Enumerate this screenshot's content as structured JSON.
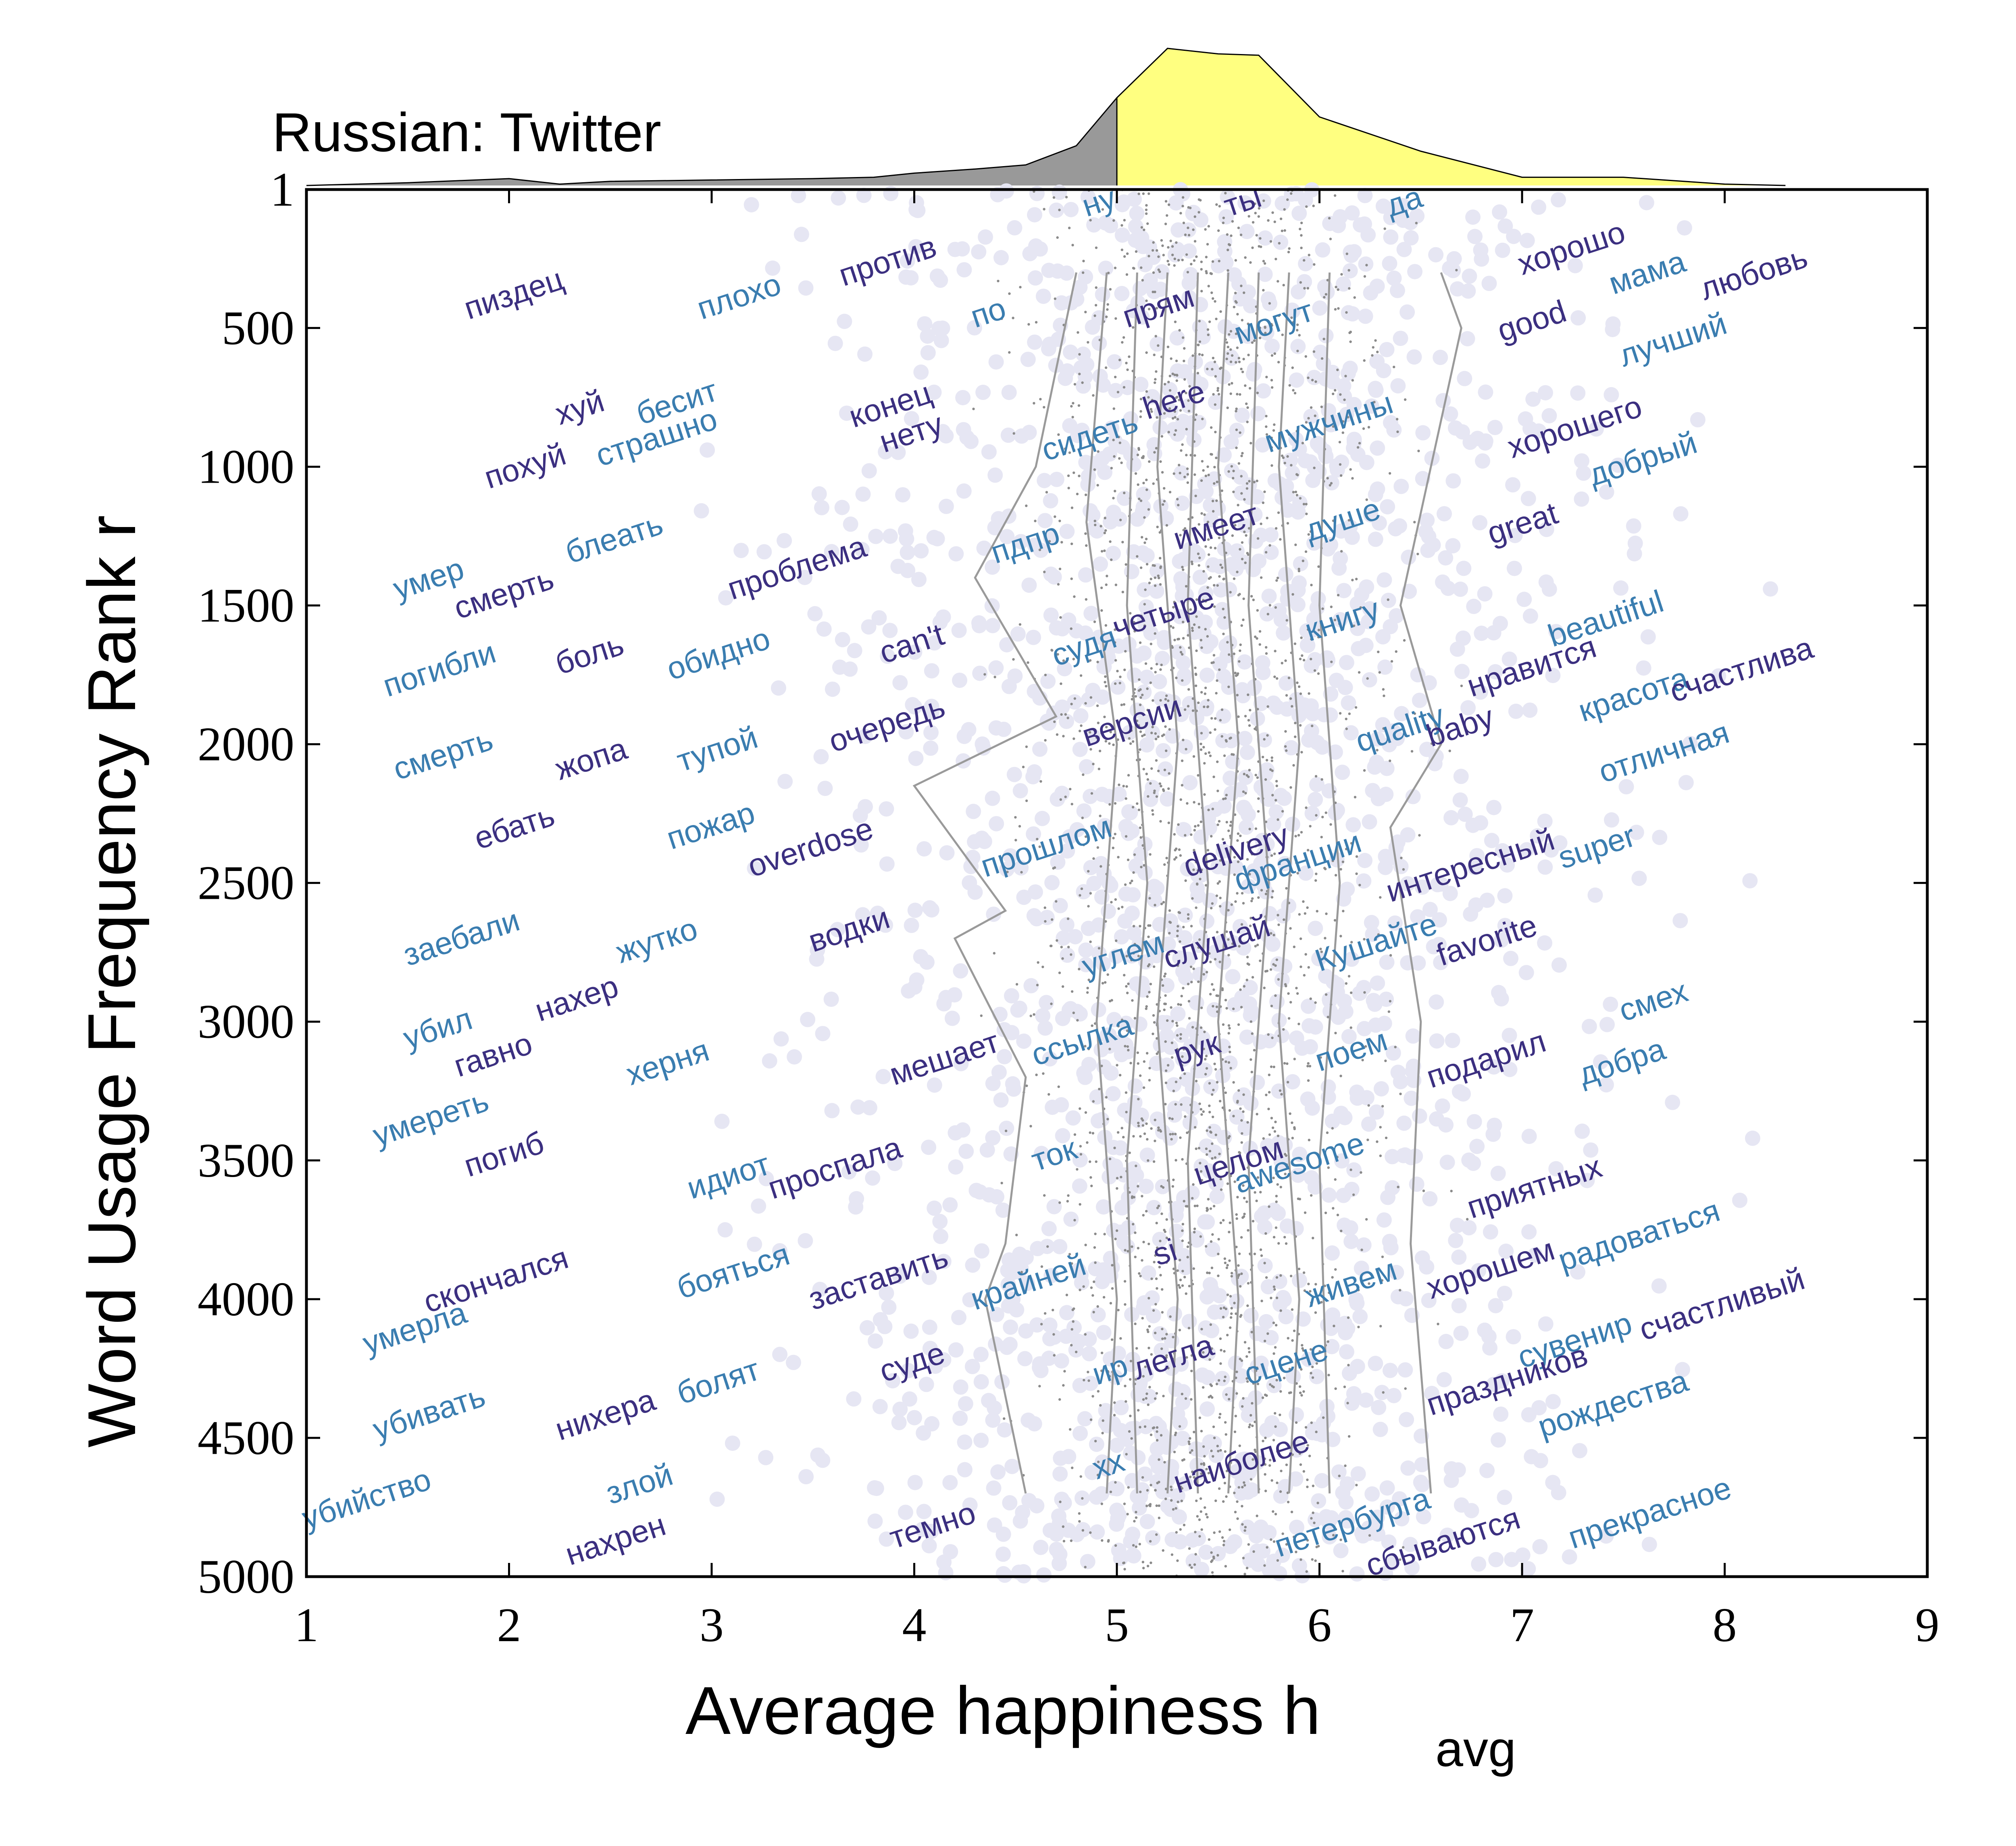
{
  "chart_data": {
    "type": "scatter",
    "title": "Russian: Twitter",
    "xlabel": "Average happiness h",
    "xlabel_sub": "avg",
    "ylabel": "Word Usage Frequency Rank r",
    "xlim": [
      1,
      9
    ],
    "ylim": [
      1,
      5000
    ],
    "x_ticks": [
      1,
      2,
      3,
      4,
      5,
      6,
      7,
      8,
      9
    ],
    "y_ticks": [
      1,
      500,
      1000,
      1500,
      2000,
      2500,
      3000,
      3500,
      4000,
      4500,
      5000
    ],
    "y_inverted": true,
    "grid": false,
    "colors": {
      "word_dark": "#3b2f80",
      "word_light": "#3a7db0",
      "points": "#e6e6f3",
      "dots": "#8a8a8a",
      "contours": "#9a9a9a",
      "hist_negative": "#999999",
      "hist_positive": "#ffff80",
      "axis": "#000000"
    },
    "histogram": {
      "x": [
        1.0,
        1.5,
        2.0,
        2.25,
        2.5,
        3.0,
        3.5,
        3.8,
        4.0,
        4.3,
        4.55,
        4.8,
        5.0,
        5.25,
        5.5,
        5.7,
        6.0,
        6.5,
        7.0,
        7.5,
        8.0,
        8.3
      ],
      "density": [
        0.0,
        0.02,
        0.05,
        0.01,
        0.03,
        0.04,
        0.05,
        0.06,
        0.09,
        0.12,
        0.15,
        0.29,
        0.64,
        1.0,
        0.96,
        0.95,
        0.5,
        0.25,
        0.06,
        0.06,
        0.01,
        0.0
      ],
      "split": 5.0
    },
    "contour_lines": [
      [
        [
          4.8,
          300
        ],
        [
          4.6,
          1000
        ],
        [
          4.3,
          1400
        ],
        [
          4.7,
          1900
        ],
        [
          4.0,
          2150
        ],
        [
          4.45,
          2600
        ],
        [
          4.2,
          2700
        ],
        [
          4.55,
          3200
        ],
        [
          4.45,
          3800
        ],
        [
          4.35,
          4000
        ],
        [
          4.55,
          4700
        ]
      ],
      [
        [
          4.95,
          300
        ],
        [
          4.85,
          1200
        ],
        [
          5.0,
          2000
        ],
        [
          4.9,
          3000
        ],
        [
          5.0,
          4000
        ],
        [
          4.95,
          4700
        ]
      ],
      [
        [
          5.1,
          300
        ],
        [
          5.05,
          1500
        ],
        [
          5.15,
          2500
        ],
        [
          5.05,
          3500
        ],
        [
          5.1,
          4700
        ]
      ],
      [
        [
          5.25,
          300
        ],
        [
          5.2,
          1000
        ],
        [
          5.3,
          2000
        ],
        [
          5.2,
          3000
        ],
        [
          5.3,
          4000
        ],
        [
          5.25,
          4700
        ]
      ],
      [
        [
          5.4,
          300
        ],
        [
          5.35,
          1500
        ],
        [
          5.45,
          2500
        ],
        [
          5.35,
          3500
        ],
        [
          5.4,
          4700
        ]
      ],
      [
        [
          5.55,
          300
        ],
        [
          5.5,
          1000
        ],
        [
          5.6,
          2000
        ],
        [
          5.5,
          3000
        ],
        [
          5.6,
          4000
        ],
        [
          5.55,
          4700
        ]
      ],
      [
        [
          5.7,
          300
        ],
        [
          5.65,
          1500
        ],
        [
          5.75,
          2500
        ],
        [
          5.65,
          3500
        ],
        [
          5.7,
          4700
        ]
      ],
      [
        [
          5.85,
          300
        ],
        [
          5.8,
          1000
        ],
        [
          5.9,
          2000
        ],
        [
          5.8,
          3000
        ],
        [
          5.9,
          4000
        ],
        [
          5.85,
          4700
        ]
      ],
      [
        [
          6.05,
          300
        ],
        [
          6.0,
          1500
        ],
        [
          6.1,
          2500
        ],
        [
          6.0,
          3500
        ],
        [
          6.05,
          4700
        ]
      ],
      [
        [
          6.6,
          300
        ],
        [
          6.7,
          500
        ],
        [
          6.55,
          1000
        ],
        [
          6.4,
          1500
        ],
        [
          6.6,
          2000
        ],
        [
          6.35,
          2300
        ],
        [
          6.5,
          3000
        ],
        [
          6.45,
          3800
        ],
        [
          6.55,
          4700
        ]
      ]
    ],
    "words": [
      {
        "text": "пиздец",
        "h": 1.8,
        "r": 470,
        "tone": "dark"
      },
      {
        "text": "плохо",
        "h": 2.95,
        "r": 470,
        "tone": "light"
      },
      {
        "text": "против",
        "h": 3.65,
        "r": 350,
        "tone": "dark"
      },
      {
        "text": "ну",
        "h": 4.85,
        "r": 100,
        "tone": "light"
      },
      {
        "text": "ты",
        "h": 5.55,
        "r": 100,
        "tone": "dark"
      },
      {
        "text": "да",
        "h": 6.35,
        "r": 100,
        "tone": "light"
      },
      {
        "text": "хорошо",
        "h": 7.0,
        "r": 310,
        "tone": "dark"
      },
      {
        "text": "мама",
        "h": 7.45,
        "r": 380,
        "tone": "light"
      },
      {
        "text": "любовь",
        "h": 7.9,
        "r": 400,
        "tone": "dark"
      },
      {
        "text": "хуй",
        "h": 2.25,
        "r": 850,
        "tone": "dark"
      },
      {
        "text": "бесит",
        "h": 2.65,
        "r": 850,
        "tone": "light"
      },
      {
        "text": "по",
        "h": 4.3,
        "r": 500,
        "tone": "light"
      },
      {
        "text": "прям",
        "h": 5.05,
        "r": 500,
        "tone": "dark"
      },
      {
        "text": "могут",
        "h": 5.6,
        "r": 560,
        "tone": "light"
      },
      {
        "text": "good",
        "h": 6.9,
        "r": 550,
        "tone": "dark"
      },
      {
        "text": "лучший",
        "h": 7.5,
        "r": 640,
        "tone": "light"
      },
      {
        "text": "похуй",
        "h": 1.9,
        "r": 1080,
        "tone": "dark"
      },
      {
        "text": "страшно",
        "h": 2.45,
        "r": 1000,
        "tone": "light"
      },
      {
        "text": "конец",
        "h": 3.7,
        "r": 860,
        "tone": "dark"
      },
      {
        "text": "нету",
        "h": 3.85,
        "r": 950,
        "tone": "dark"
      },
      {
        "text": "сидеть",
        "h": 4.65,
        "r": 980,
        "tone": "light"
      },
      {
        "text": "here",
        "h": 5.15,
        "r": 830,
        "tone": "dark"
      },
      {
        "text": "мужчины",
        "h": 5.75,
        "r": 950,
        "tone": "light"
      },
      {
        "text": "хорошего",
        "h": 6.95,
        "r": 970,
        "tone": "dark"
      },
      {
        "text": "добрый",
        "h": 7.35,
        "r": 1070,
        "tone": "light"
      },
      {
        "text": "умер",
        "h": 1.45,
        "r": 1480,
        "tone": "light"
      },
      {
        "text": "смерть",
        "h": 1.75,
        "r": 1550,
        "tone": "dark"
      },
      {
        "text": "блеать",
        "h": 2.3,
        "r": 1350,
        "tone": "light"
      },
      {
        "text": "проблема",
        "h": 3.1,
        "r": 1480,
        "tone": "dark"
      },
      {
        "text": "пдпр",
        "h": 4.4,
        "r": 1350,
        "tone": "light"
      },
      {
        "text": "имеет",
        "h": 5.3,
        "r": 1300,
        "tone": "dark"
      },
      {
        "text": "душе",
        "h": 5.95,
        "r": 1270,
        "tone": "light"
      },
      {
        "text": "great",
        "h": 6.85,
        "r": 1280,
        "tone": "dark"
      },
      {
        "text": "beautiful",
        "h": 7.15,
        "r": 1650,
        "tone": "light"
      },
      {
        "text": "погибли",
        "h": 1.4,
        "r": 1830,
        "tone": "light"
      },
      {
        "text": "боль",
        "h": 2.25,
        "r": 1750,
        "tone": "dark"
      },
      {
        "text": "обидно",
        "h": 2.8,
        "r": 1770,
        "tone": "light"
      },
      {
        "text": "can't",
        "h": 3.85,
        "r": 1710,
        "tone": "dark"
      },
      {
        "text": "судя",
        "h": 4.7,
        "r": 1720,
        "tone": "light"
      },
      {
        "text": "четыре",
        "h": 5.0,
        "r": 1620,
        "tone": "dark"
      },
      {
        "text": "книгу",
        "h": 5.95,
        "r": 1630,
        "tone": "light"
      },
      {
        "text": "нравится",
        "h": 6.75,
        "r": 1830,
        "tone": "dark"
      },
      {
        "text": "красота",
        "h": 7.3,
        "r": 1920,
        "tone": "light"
      },
      {
        "text": "счастлива",
        "h": 7.75,
        "r": 1850,
        "tone": "dark"
      },
      {
        "text": "смерть",
        "h": 1.45,
        "r": 2130,
        "tone": "light"
      },
      {
        "text": "жопа",
        "h": 2.25,
        "r": 2130,
        "tone": "dark"
      },
      {
        "text": "тупой",
        "h": 2.85,
        "r": 2100,
        "tone": "light"
      },
      {
        "text": "очередь",
        "h": 3.6,
        "r": 2030,
        "tone": "dark"
      },
      {
        "text": "версии",
        "h": 4.85,
        "r": 2010,
        "tone": "dark"
      },
      {
        "text": "quality",
        "h": 6.2,
        "r": 2030,
        "tone": "light"
      },
      {
        "text": "baby",
        "h": 6.55,
        "r": 2010,
        "tone": "dark"
      },
      {
        "text": "отличная",
        "h": 7.4,
        "r": 2140,
        "tone": "light"
      },
      {
        "text": "ебать",
        "h": 1.85,
        "r": 2380,
        "tone": "dark"
      },
      {
        "text": "пожар",
        "h": 2.8,
        "r": 2380,
        "tone": "light"
      },
      {
        "text": "overdose",
        "h": 3.2,
        "r": 2480,
        "tone": "dark"
      },
      {
        "text": "прошлом",
        "h": 4.35,
        "r": 2480,
        "tone": "light"
      },
      {
        "text": "delivery",
        "h": 5.35,
        "r": 2480,
        "tone": "dark"
      },
      {
        "text": "франции",
        "h": 5.6,
        "r": 2530,
        "tone": "light"
      },
      {
        "text": "интересный",
        "h": 6.35,
        "r": 2570,
        "tone": "dark"
      },
      {
        "text": "super",
        "h": 7.2,
        "r": 2450,
        "tone": "light"
      },
      {
        "text": "заебали",
        "h": 1.5,
        "r": 2800,
        "tone": "light"
      },
      {
        "text": "жутко",
        "h": 2.55,
        "r": 2790,
        "tone": "light"
      },
      {
        "text": "водки",
        "h": 3.5,
        "r": 2750,
        "tone": "dark"
      },
      {
        "text": "углем",
        "h": 4.85,
        "r": 2840,
        "tone": "light"
      },
      {
        "text": "слушай",
        "h": 5.25,
        "r": 2810,
        "tone": "dark"
      },
      {
        "text": "Кушайте",
        "h": 6.0,
        "r": 2820,
        "tone": "light"
      },
      {
        "text": "favorite",
        "h": 6.6,
        "r": 2800,
        "tone": "dark"
      },
      {
        "text": "убил",
        "h": 1.5,
        "r": 3100,
        "tone": "light"
      },
      {
        "text": "нахер",
        "h": 2.15,
        "r": 3000,
        "tone": "dark"
      },
      {
        "text": "ссылка",
        "h": 4.6,
        "r": 3160,
        "tone": "light"
      },
      {
        "text": "мешает",
        "h": 3.9,
        "r": 3230,
        "tone": "dark"
      },
      {
        "text": "рук",
        "h": 5.3,
        "r": 3160,
        "tone": "dark"
      },
      {
        "text": "поем",
        "h": 6.0,
        "r": 3180,
        "tone": "light"
      },
      {
        "text": "подарил",
        "h": 6.55,
        "r": 3240,
        "tone": "dark"
      },
      {
        "text": "смех",
        "h": 7.5,
        "r": 3000,
        "tone": "light"
      },
      {
        "text": "умереть",
        "h": 1.35,
        "r": 3450,
        "tone": "light"
      },
      {
        "text": "гавно",
        "h": 1.75,
        "r": 3200,
        "tone": "dark"
      },
      {
        "text": "херня",
        "h": 2.6,
        "r": 3230,
        "tone": "light"
      },
      {
        "text": "добра",
        "h": 7.3,
        "r": 3230,
        "tone": "light"
      },
      {
        "text": "погиб",
        "h": 1.8,
        "r": 3560,
        "tone": "dark"
      },
      {
        "text": "идиот",
        "h": 2.9,
        "r": 3640,
        "tone": "light"
      },
      {
        "text": "проспала",
        "h": 3.3,
        "r": 3640,
        "tone": "dark"
      },
      {
        "text": "ток",
        "h": 4.6,
        "r": 3540,
        "tone": "light"
      },
      {
        "text": "целом",
        "h": 5.4,
        "r": 3590,
        "tone": "dark"
      },
      {
        "text": "awesome",
        "h": 5.6,
        "r": 3620,
        "tone": "light"
      },
      {
        "text": "приятных",
        "h": 6.75,
        "r": 3710,
        "tone": "dark"
      },
      {
        "text": "радоваться",
        "h": 7.2,
        "r": 3900,
        "tone": "light"
      },
      {
        "text": "умерла",
        "h": 1.3,
        "r": 4200,
        "tone": "light"
      },
      {
        "text": "скончался",
        "h": 1.6,
        "r": 4050,
        "tone": "dark"
      },
      {
        "text": "бояться",
        "h": 2.85,
        "r": 4000,
        "tone": "light"
      },
      {
        "text": "заставить",
        "h": 3.5,
        "r": 4040,
        "tone": "dark"
      },
      {
        "text": "крайней",
        "h": 4.3,
        "r": 4040,
        "tone": "light"
      },
      {
        "text": "si",
        "h": 5.2,
        "r": 3880,
        "tone": "dark"
      },
      {
        "text": "живем",
        "h": 5.95,
        "r": 4030,
        "tone": "light"
      },
      {
        "text": "хорошем",
        "h": 6.55,
        "r": 4000,
        "tone": "dark"
      },
      {
        "text": "сувенир",
        "h": 7.0,
        "r": 4250,
        "tone": "light"
      },
      {
        "text": "суде",
        "h": 3.85,
        "r": 4300,
        "tone": "dark"
      },
      {
        "text": "болят",
        "h": 2.85,
        "r": 4380,
        "tone": "light"
      },
      {
        "text": "ир",
        "h": 4.9,
        "r": 4310,
        "tone": "light"
      },
      {
        "text": "легла",
        "h": 5.1,
        "r": 4290,
        "tone": "dark"
      },
      {
        "text": "сцене",
        "h": 5.65,
        "r": 4310,
        "tone": "light"
      },
      {
        "text": "праздников",
        "h": 6.55,
        "r": 4420,
        "tone": "dark"
      },
      {
        "text": "счастливый",
        "h": 7.6,
        "r": 4150,
        "tone": "dark"
      },
      {
        "text": "убивать",
        "h": 1.35,
        "r": 4510,
        "tone": "light"
      },
      {
        "text": "нихера",
        "h": 2.25,
        "r": 4510,
        "tone": "dark"
      },
      {
        "text": "рождества",
        "h": 7.1,
        "r": 4500,
        "tone": "light"
      },
      {
        "text": "убийство",
        "h": 1.0,
        "r": 4830,
        "tone": "light"
      },
      {
        "text": "злой",
        "h": 2.5,
        "r": 4740,
        "tone": "light"
      },
      {
        "text": "xx",
        "h": 4.9,
        "r": 4650,
        "tone": "light"
      },
      {
        "text": "наиболее",
        "h": 5.3,
        "r": 4700,
        "tone": "dark"
      },
      {
        "text": "петербурга",
        "h": 5.8,
        "r": 4930,
        "tone": "light"
      },
      {
        "text": "сбываются",
        "h": 6.25,
        "r": 5000,
        "tone": "dark"
      },
      {
        "text": "нахрен",
        "h": 2.3,
        "r": 4960,
        "tone": "dark"
      },
      {
        "text": "темно",
        "h": 3.9,
        "r": 4900,
        "tone": "dark"
      },
      {
        "text": "прекрасное",
        "h": 7.25,
        "r": 4900,
        "tone": "light"
      }
    ]
  }
}
